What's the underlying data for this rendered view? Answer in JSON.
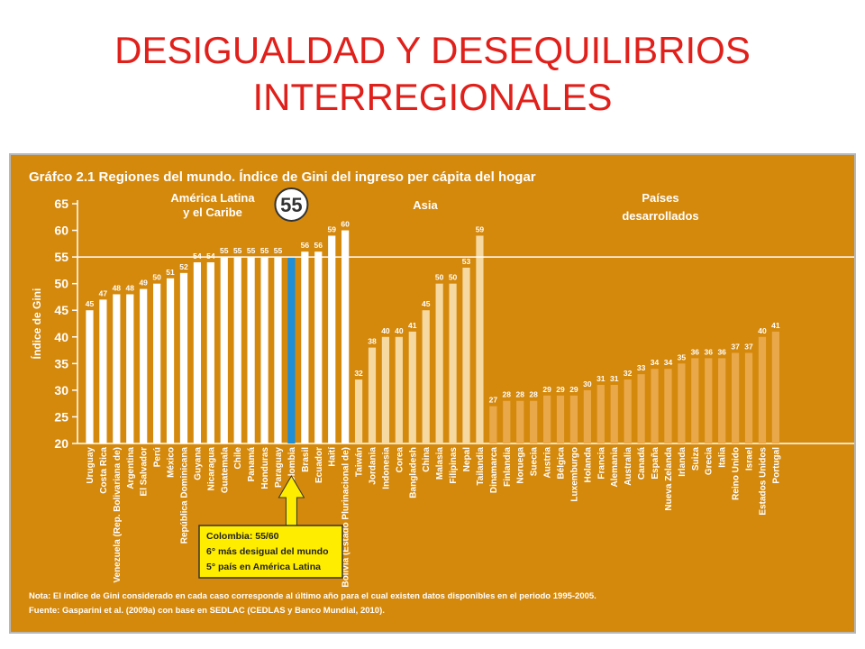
{
  "slide": {
    "title_line1": "DESIGUALDAD Y DESEQUILIBRIOS",
    "title_line2": "INTERREGIONALES"
  },
  "chart_data": {
    "type": "bar",
    "title": "Gráfco 2.1 Regiones del mundo. Índice de Gini del ingreso per cápita del hogar",
    "ylabel": "Índice de Gini",
    "ylim": [
      20,
      65
    ],
    "yticks": [
      20,
      25,
      30,
      35,
      40,
      45,
      50,
      55,
      60,
      65
    ],
    "reference_line": 55,
    "highlight_value_label": "55",
    "regions": [
      {
        "name": "América Latina\ny el Caribe",
        "color": "#ffffff",
        "categories": [
          "Uruguay",
          "Costa Rica",
          "Venezuela (Rep. Bolivariana de)",
          "Argentina",
          "El Salvador",
          "Perú",
          "México",
          "República Dominicana",
          "Guyana",
          "Nicaragua",
          "Guatemala",
          "Chile",
          "Panamá",
          "Honduras",
          "Paraguay",
          "Colombia",
          "Brasil",
          "Ecuador",
          "Haití",
          "Bolivia (Estado Plurinacional de)"
        ],
        "values": [
          45,
          47,
          48,
          48,
          49,
          50,
          51,
          52,
          54,
          54,
          55,
          55,
          55,
          55,
          55,
          55,
          56,
          56,
          59,
          60
        ]
      },
      {
        "name": "Asia",
        "color": "#f6d9a0",
        "categories": [
          "Taiwán",
          "Jordania",
          "Indonesia",
          "Corea",
          "Bangladesh",
          "China",
          "Malasia",
          "Filipinas",
          "Nepal",
          "Tailandia"
        ],
        "values": [
          32,
          38,
          40,
          40,
          41,
          45,
          50,
          50,
          53,
          59
        ]
      },
      {
        "name": "Países\ndesarrollados",
        "color": "#e9a94a",
        "categories": [
          "Dinamarca",
          "Finlandia",
          "Noruega",
          "Suecia",
          "Austria",
          "Bélgica",
          "Luxemburgo",
          "Holanda",
          "Francia",
          "Alemania",
          "Australia",
          "Canadá",
          "España",
          "Nueva Zelanda",
          "Irlanda",
          "Suiza",
          "Grecia",
          "Italia",
          "Reino Unido",
          "Israel",
          "Estados Unidos",
          "Portugal"
        ],
        "values": [
          27,
          28,
          28,
          28,
          29,
          29,
          29,
          30,
          31,
          31,
          32,
          33,
          34,
          34,
          35,
          36,
          36,
          36,
          37,
          37,
          40,
          41
        ]
      }
    ],
    "highlight": {
      "category": "Colombia",
      "color": "#1c8fd8"
    },
    "callout": {
      "line1": "Colombia: 55/60",
      "line2": "6° más desigual del mundo",
      "line3": "5° país en América Latina"
    },
    "notes": {
      "nota": "Nota: El índice de Gini considerado en cada caso corresponde al último año para el cual existen datos disponibles en el periodo 1995-2005.",
      "fuente": "Fuente: Gasparini et al. (2009a) con base en SEDLAC (CEDLAS y Banco Mundial, 2010)."
    },
    "grid": false
  }
}
